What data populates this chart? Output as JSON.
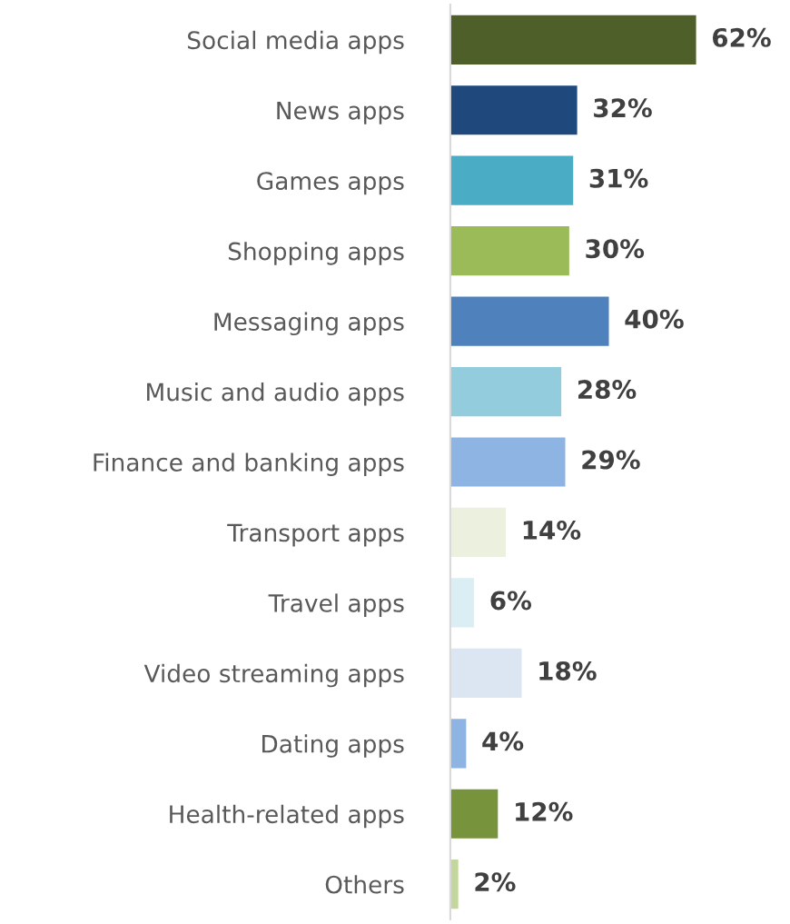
{
  "chart_data": {
    "type": "bar",
    "orientation": "horizontal",
    "categories": [
      "Social media apps",
      "News apps",
      "Games apps",
      "Shopping apps",
      "Messaging apps",
      "Music and audio apps",
      "Finance and banking apps",
      "Transport apps",
      "Travel apps",
      "Video streaming apps",
      "Dating apps",
      "Health-related apps",
      "Others"
    ],
    "values": [
      62,
      32,
      31,
      30,
      40,
      28,
      29,
      14,
      6,
      18,
      4,
      12,
      2
    ],
    "value_labels": [
      "62%",
      "32%",
      "31%",
      "30%",
      "40%",
      "28%",
      "29%",
      "14%",
      "6%",
      "18%",
      "4%",
      "12%",
      "2%"
    ],
    "colors": [
      "#4e5f2a",
      "#1f497d",
      "#4bacc6",
      "#9bbb59",
      "#4f81bd",
      "#93cddd",
      "#8eb4e3",
      "#ebf1de",
      "#dbeef4",
      "#dce6f2",
      "#8eb4e3",
      "#77933c",
      "#c3d69b"
    ],
    "tick_labels": "y",
    "grid": false,
    "legend": false
  }
}
